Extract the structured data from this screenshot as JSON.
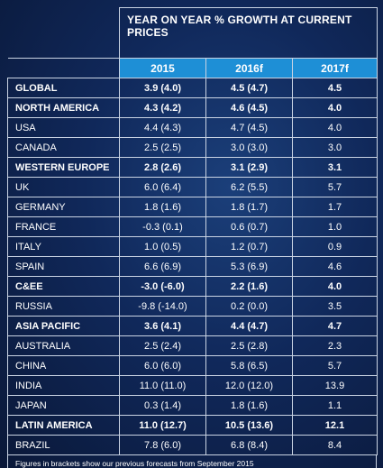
{
  "chart_data": {
    "type": "table",
    "title": "YEAR ON YEAR % GROWTH AT CURRENT PRICES",
    "columns": [
      "2015",
      "2016f",
      "2017f"
    ],
    "rows": [
      {
        "label": "GLOBAL",
        "bold": true,
        "values": [
          "3.9 (4.0)",
          "4.5 (4.7)",
          "4.5"
        ]
      },
      {
        "label": "NORTH AMERICA",
        "bold": true,
        "values": [
          "4.3 (4.2)",
          "4.6 (4.5)",
          "4.0"
        ]
      },
      {
        "label": "USA",
        "bold": false,
        "values": [
          "4.4 (4.3)",
          "4.7 (4.5)",
          "4.0"
        ]
      },
      {
        "label": "CANADA",
        "bold": false,
        "values": [
          "2.5 (2.5)",
          "3.0 (3.0)",
          "3.0"
        ]
      },
      {
        "label": "WESTERN EUROPE",
        "bold": true,
        "values": [
          "2.8 (2.6)",
          "3.1 (2.9)",
          "3.1"
        ]
      },
      {
        "label": "UK",
        "bold": false,
        "values": [
          "6.0 (6.4)",
          "6.2 (5.5)",
          "5.7"
        ]
      },
      {
        "label": "GERMANY",
        "bold": false,
        "values": [
          "1.8 (1.6)",
          "1.8 (1.7)",
          "1.7"
        ]
      },
      {
        "label": "FRANCE",
        "bold": false,
        "values": [
          "-0.3 (0.1)",
          "0.6 (0.7)",
          "1.0"
        ]
      },
      {
        "label": "ITALY",
        "bold": false,
        "values": [
          "1.0 (0.5)",
          "1.2 (0.7)",
          "0.9"
        ]
      },
      {
        "label": "SPAIN",
        "bold": false,
        "values": [
          "6.6 (6.9)",
          "5.3 (6.9)",
          "4.6"
        ]
      },
      {
        "label": "C&EE",
        "bold": true,
        "values": [
          "-3.0 (-6.0)",
          "2.2 (1.6)",
          "4.0"
        ]
      },
      {
        "label": "RUSSIA",
        "bold": false,
        "values": [
          "-9.8 (-14.0)",
          "0.2 (0.0)",
          "3.5"
        ]
      },
      {
        "label": "ASIA PACIFIC",
        "bold": true,
        "values": [
          "3.6 (4.1)",
          "4.4 (4.7)",
          "4.7"
        ]
      },
      {
        "label": "AUSTRALIA",
        "bold": false,
        "values": [
          "2.5 (2.4)",
          "2.5 (2.8)",
          "2.3"
        ]
      },
      {
        "label": "CHINA",
        "bold": false,
        "values": [
          "6.0 (6.0)",
          "5.8 (6.5)",
          "5.7"
        ]
      },
      {
        "label": "INDIA",
        "bold": false,
        "values": [
          "11.0 (11.0)",
          "12.0 (12.0)",
          "13.9"
        ]
      },
      {
        "label": "JAPAN",
        "bold": false,
        "values": [
          "0.3 (1.4)",
          "1.8 (1.6)",
          "1.1"
        ]
      },
      {
        "label": "LATIN AMERICA",
        "bold": true,
        "values": [
          "11.0 (12.7)",
          "10.5 (13.6)",
          "12.1"
        ]
      },
      {
        "label": "BRAZIL",
        "bold": false,
        "values": [
          "7.8 (6.0)",
          "6.8 (8.4)",
          "8.4"
        ]
      }
    ],
    "footnote": "Figures in brackets show our previous forecasts from September 2015"
  },
  "colors": {
    "header_fill": "#1e8fd6",
    "background": "#10285a",
    "grid_line": "#c9d3e3",
    "text": "#ffffff"
  }
}
